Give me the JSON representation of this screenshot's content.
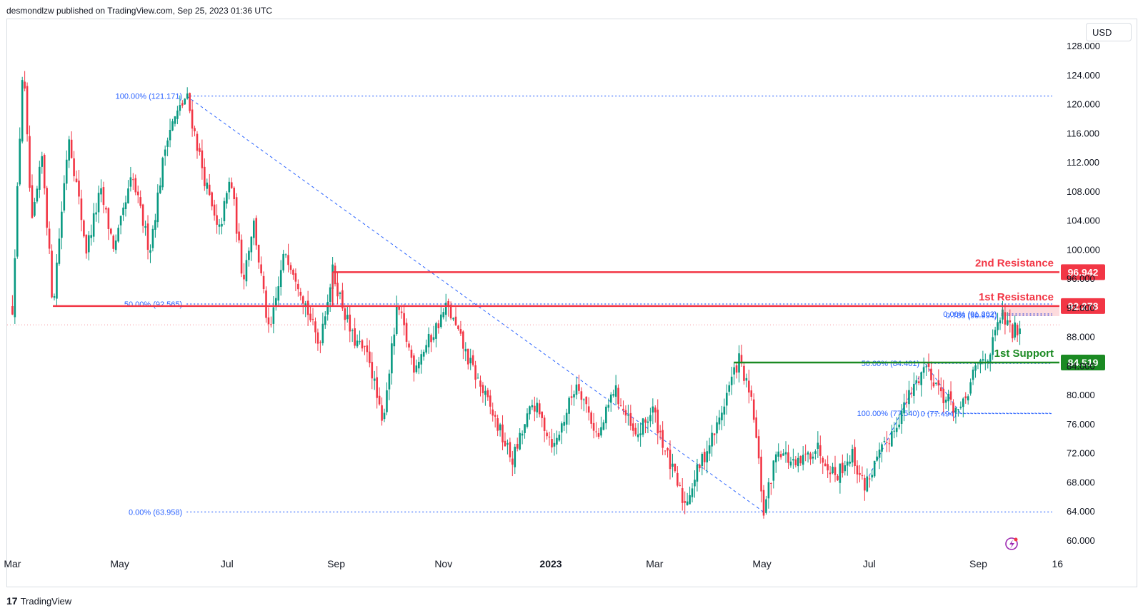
{
  "header": {
    "published": "desmondlzw published on TradingView.com, Sep 25, 2023 01:36 UTC"
  },
  "currency_label": "USD",
  "footer": {
    "logo": "17",
    "brand": "TradingView"
  },
  "colors": {
    "up": "#089981",
    "down": "#f23645",
    "resistance": "#f23645",
    "support": "#1b8a23",
    "fib": "#2962ff"
  },
  "icon": "lightning-bolt-icon",
  "chart_data": {
    "type": "candlestick",
    "ylim": [
      58,
      130
    ],
    "y_ticks": [
      "128.000",
      "124.000",
      "120.000",
      "116.000",
      "112.000",
      "108.000",
      "104.000",
      "100.000",
      "96.000",
      "92.000",
      "88.000",
      "84.000",
      "80.000",
      "76.000",
      "72.000",
      "68.000",
      "64.000",
      "60.000"
    ],
    "x_ticks": [
      {
        "label": "Mar",
        "date": "2022-03-01"
      },
      {
        "label": "May",
        "date": "2022-05-01"
      },
      {
        "label": "Jul",
        "date": "2022-07-01"
      },
      {
        "label": "Sep",
        "date": "2022-09-01"
      },
      {
        "label": "Nov",
        "date": "2022-11-01"
      },
      {
        "label": "2023",
        "date": "2023-01-01",
        "bold": true
      },
      {
        "label": "Mar",
        "date": "2023-03-01"
      },
      {
        "label": "May",
        "date": "2023-05-01"
      },
      {
        "label": "Jul",
        "date": "2023-07-01"
      },
      {
        "label": "Sep",
        "date": "2023-09-01"
      },
      {
        "label": "16",
        "date": "2023-10-16"
      }
    ],
    "levels": [
      {
        "name": "2nd Resistance",
        "value": 96.942,
        "label": "96.942",
        "color": "#f23645",
        "start": "2022-08-30"
      },
      {
        "name": "1st Resistance",
        "value": 92.278,
        "label": "92.278",
        "color": "#f23645",
        "start": "2022-03-24"
      },
      {
        "name": "1st Support",
        "value": 84.519,
        "label": "84.519",
        "color": "#1b8a23",
        "start": "2023-04-15"
      }
    ],
    "fib_labels": [
      {
        "text": "100.00% (121.171)",
        "value": 121.171,
        "start": "2022-06-08",
        "end": "2023-10-13"
      },
      {
        "text": "50.00% (92.565)",
        "value": 92.565,
        "start": "2022-06-08",
        "end": "2023-10-13"
      },
      {
        "text": "0.00% (63.958)",
        "value": 63.958,
        "start": "2022-06-08",
        "end": "2023-10-13"
      },
      {
        "text": "0.00% (91.202)",
        "value": 91.202,
        "start": "2023-09-14",
        "end": "2023-10-13"
      },
      {
        "text": "0.786 (90.994)",
        "value": 90.994,
        "start": "2023-09-14",
        "end": "2023-10-13"
      },
      {
        "text": "50.00% (84.401)",
        "value": 84.401,
        "start": "2023-08-01",
        "end": "2023-10-13"
      },
      {
        "text": "100.00% (77.540)",
        "value": 77.54,
        "start": "2023-08-01",
        "end": "2023-10-13"
      },
      {
        "text": "0 (77.494)",
        "value": 77.494,
        "start": "2023-08-22",
        "end": "2023-10-13"
      }
    ],
    "fib_trend_lines": [
      {
        "from": [
          "2022-06-08",
          121.171
        ],
        "to": [
          "2023-05-02",
          63.958
        ]
      },
      {
        "from": [
          "2023-06-28",
          67.5
        ],
        "to": [
          "2023-08-02",
          84.3
        ]
      },
      {
        "from": [
          "2023-08-02",
          84.3
        ],
        "to": [
          "2023-08-22",
          77.5
        ]
      }
    ],
    "last_price": 89.7,
    "price_path": [
      [
        "2022-03-01",
        92
      ],
      [
        "2022-03-07",
        126
      ],
      [
        "2022-03-12",
        103
      ],
      [
        "2022-03-18",
        113
      ],
      [
        "2022-03-24",
        92.3
      ],
      [
        "2022-04-02",
        116
      ],
      [
        "2022-04-12",
        100
      ],
      [
        "2022-04-20",
        108
      ],
      [
        "2022-04-28",
        100
      ],
      [
        "2022-05-08",
        110
      ],
      [
        "2022-05-18",
        100
      ],
      [
        "2022-05-28",
        116
      ],
      [
        "2022-06-08",
        121.2
      ],
      [
        "2022-06-18",
        110
      ],
      [
        "2022-06-26",
        102
      ],
      [
        "2022-07-03",
        110
      ],
      [
        "2022-07-10",
        96
      ],
      [
        "2022-07-16",
        104
      ],
      [
        "2022-07-25",
        88
      ],
      [
        "2022-08-03",
        100
      ],
      [
        "2022-08-10",
        96
      ],
      [
        "2022-08-22",
        87
      ],
      [
        "2022-08-30",
        97
      ],
      [
        "2022-09-10",
        88
      ],
      [
        "2022-09-20",
        85
      ],
      [
        "2022-09-27",
        76
      ],
      [
        "2022-10-06",
        92.3
      ],
      [
        "2022-10-15",
        84
      ],
      [
        "2022-10-25",
        88
      ],
      [
        "2022-11-03",
        92.3
      ],
      [
        "2022-11-15",
        85
      ],
      [
        "2022-11-28",
        78
      ],
      [
        "2022-12-10",
        71
      ],
      [
        "2022-12-22",
        79
      ],
      [
        "2023-01-03",
        73
      ],
      [
        "2023-01-16",
        82
      ],
      [
        "2023-01-28",
        74
      ],
      [
        "2023-02-06",
        81
      ],
      [
        "2023-02-18",
        74
      ],
      [
        "2023-02-28",
        78
      ],
      [
        "2023-03-09",
        71
      ],
      [
        "2023-03-18",
        65
      ],
      [
        "2023-03-26",
        70
      ],
      [
        "2023-04-06",
        76
      ],
      [
        "2023-04-12",
        81
      ],
      [
        "2023-04-18",
        85
      ],
      [
        "2023-04-26",
        78
      ],
      [
        "2023-05-02",
        64
      ],
      [
        "2023-05-10",
        73
      ],
      [
        "2023-05-20",
        70
      ],
      [
        "2023-06-01",
        73
      ],
      [
        "2023-06-12",
        69
      ],
      [
        "2023-06-21",
        72
      ],
      [
        "2023-06-28",
        67.5
      ],
      [
        "2023-07-12",
        74
      ],
      [
        "2023-07-24",
        80
      ],
      [
        "2023-08-02",
        84.3
      ],
      [
        "2023-08-12",
        80
      ],
      [
        "2023-08-22",
        77.5
      ],
      [
        "2023-08-31",
        84
      ],
      [
        "2023-09-08",
        86
      ],
      [
        "2023-09-14",
        91.2
      ],
      [
        "2023-09-20",
        88.6
      ],
      [
        "2023-09-25",
        89.7
      ]
    ]
  }
}
